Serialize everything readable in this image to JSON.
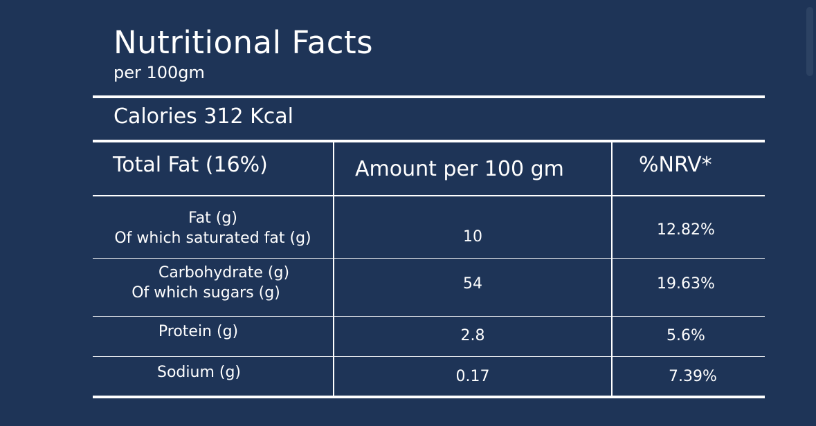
{
  "header": {
    "title": "Nutritional Facts",
    "subtitle": "per 100gm"
  },
  "calories": "Calories 312 Kcal",
  "table": {
    "columns": [
      "Total Fat (16%)",
      "Amount per 100 gm",
      "%NRV*"
    ],
    "rows": [
      {
        "label_line1": "Fat (g)",
        "label_line2": "Of which saturated fat (g)",
        "amount": "10",
        "nrv": "12.82%"
      },
      {
        "label_line1": "Carbohydrate (g)",
        "label_line2": "Of which sugars (g)",
        "amount": "54",
        "nrv": "19.63%"
      },
      {
        "label_line1": "Protein (g)",
        "amount": "2.8",
        "nrv": "5.6%"
      },
      {
        "label_line1": "Sodium (g)",
        "amount": "0.17",
        "nrv": "7.39%"
      }
    ]
  },
  "colors": {
    "background": "#1e3457",
    "text": "#ffffff"
  }
}
